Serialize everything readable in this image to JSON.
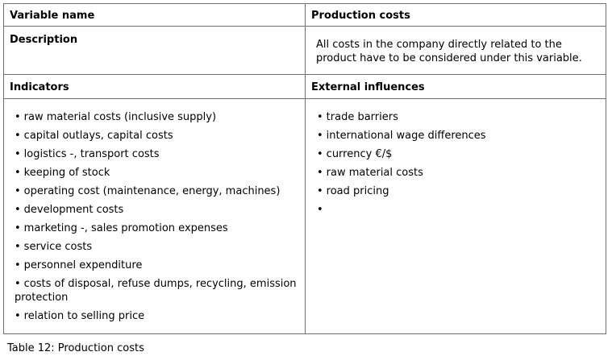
{
  "table": {
    "header_left": "Variable name",
    "header_right": "Production costs",
    "description_label": "Description",
    "description_text": "All costs in the company directly related to the product have to be considered under this variable.",
    "indicators_label": "Indicators",
    "external_label": "External influences",
    "indicators": [
      "raw material costs (inclusive supply)",
      "capital outlays, capital costs",
      "logistics -, transport costs",
      "keeping of stock",
      "operating cost (maintenance, energy, machines)",
      "development costs",
      "marketing -, sales promotion expenses",
      "service costs",
      "personnel expenditure",
      "costs of disposal, refuse dumps, recycling, emission protection",
      "relation to selling price"
    ],
    "external_influences": [
      "trade barriers",
      "international wage differences",
      "currency €/$",
      "raw material costs",
      "road pricing",
      ""
    ],
    "bullet": "•"
  },
  "caption": "Table 12: Production costs"
}
